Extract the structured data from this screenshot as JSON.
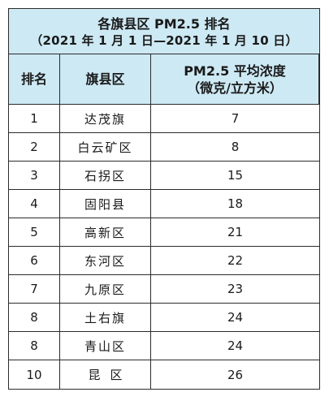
{
  "table": {
    "title_line1": "各旗县区 PM2.5 排名",
    "title_line2": "（2021 年 1 月 1 日—2021 年 1 月 10 日）",
    "headers": {
      "rank": "排名",
      "county": "旗县区",
      "pm25_line1": "PM2.5 平均浓度",
      "pm25_line2": "（微克/立方米）"
    },
    "rows": [
      {
        "rank": "1",
        "county": "达茂旗",
        "value": "7"
      },
      {
        "rank": "2",
        "county": "白云矿区",
        "value": "8"
      },
      {
        "rank": "3",
        "county": "石拐区",
        "value": "15"
      },
      {
        "rank": "4",
        "county": "固阳县",
        "value": "18"
      },
      {
        "rank": "5",
        "county": "高新区",
        "value": "21"
      },
      {
        "rank": "6",
        "county": "东河区",
        "value": "22"
      },
      {
        "rank": "7",
        "county": "九原区",
        "value": "23"
      },
      {
        "rank": "8",
        "county": "土右旗",
        "value": "24"
      },
      {
        "rank": "8",
        "county": "青山区",
        "value": "24"
      },
      {
        "rank": "10",
        "county": "昆区",
        "value": "26"
      }
    ]
  },
  "colors": {
    "header_background": "#cde9f4",
    "border": "#2b2b2b"
  }
}
